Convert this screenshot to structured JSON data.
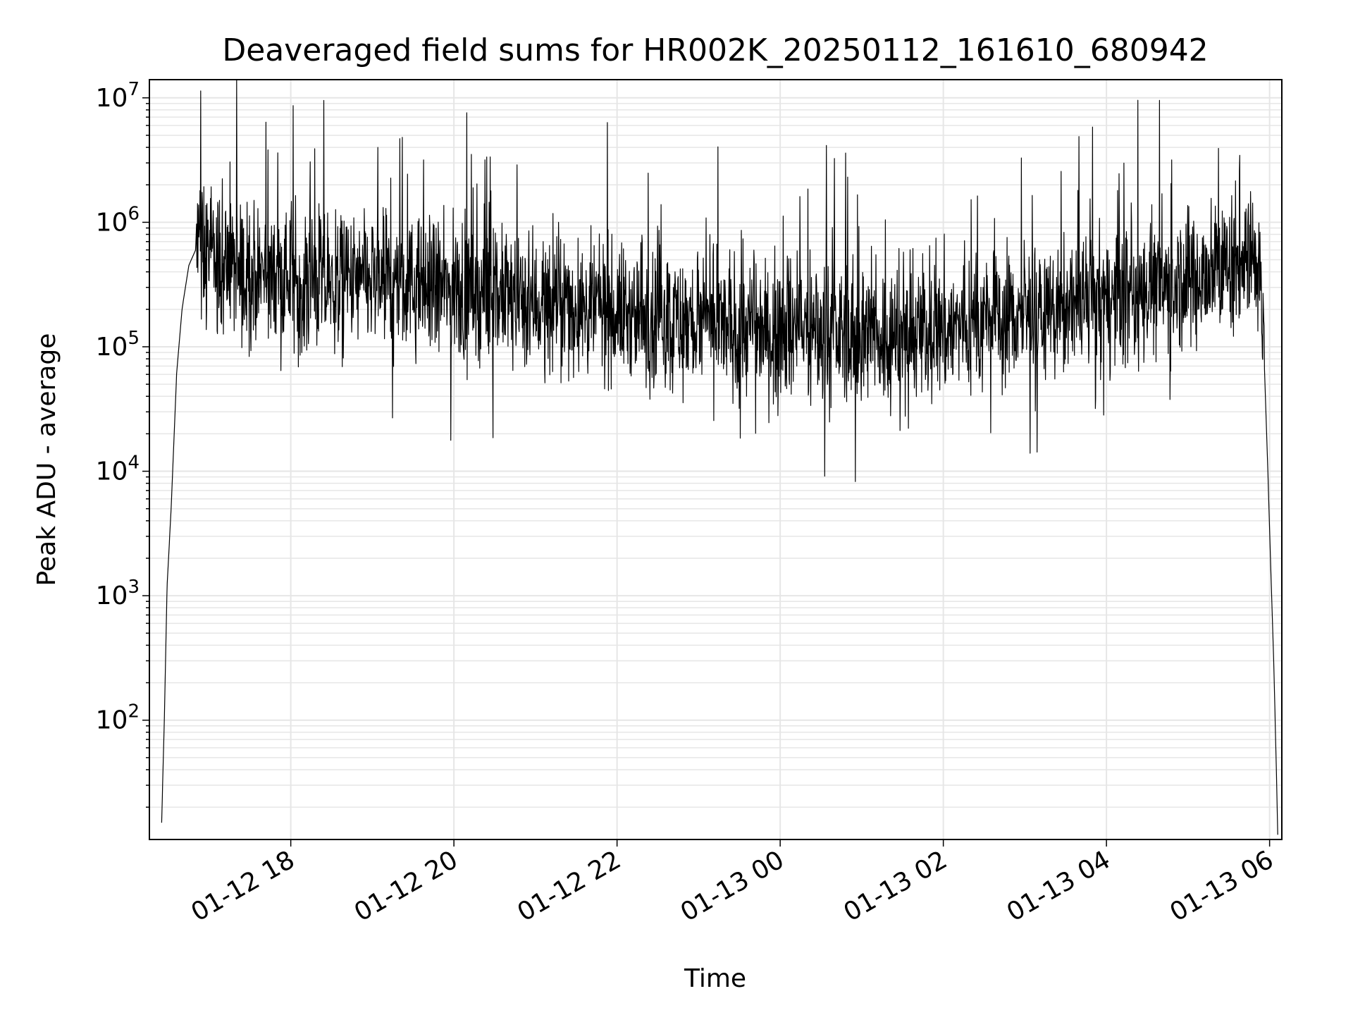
{
  "chart_data": {
    "type": "line",
    "title": "Deaveraged field sums for HR002K_20250112_161610_680942",
    "xlabel": "Time",
    "ylabel": "Peak ADU - average",
    "yscale": "log",
    "ylim": [
      11,
      14000000
    ],
    "xlim": [
      "2025-01-12 16:16",
      "2025-01-13 06:09"
    ],
    "grid": true,
    "series_color": "#000000",
    "grid_color": "#e6e6e6",
    "x_ticks": [
      "01-12 18",
      "01-12 20",
      "01-12 22",
      "01-13 00",
      "01-13 02",
      "01-13 04",
      "01-13 06"
    ],
    "x_tick_times": [
      "2025-01-12 18:00",
      "2025-01-12 20:00",
      "2025-01-12 22:00",
      "2025-01-13 00:00",
      "2025-01-13 02:00",
      "2025-01-13 04:00",
      "2025-01-13 06:00"
    ],
    "y_ticks": [
      {
        "value": 100,
        "base": "10",
        "exp": "2"
      },
      {
        "value": 1000,
        "base": "10",
        "exp": "3"
      },
      {
        "value": 10000,
        "base": "10",
        "exp": "4"
      },
      {
        "value": 100000,
        "base": "10",
        "exp": "5"
      },
      {
        "value": 1000000,
        "base": "10",
        "exp": "6"
      },
      {
        "value": 10000000,
        "base": "10",
        "exp": "7"
      }
    ],
    "series": [
      {
        "x": [
          "2025-01-12 16:25",
          "2025-01-12 16:27",
          "2025-01-12 16:29",
          "2025-01-12 16:32",
          "2025-01-12 16:36",
          "2025-01-12 16:40",
          "2025-01-12 16:45",
          "2025-01-12 16:50",
          "2025-01-12 16:55",
          "2025-01-12 17:05",
          "2025-01-12 17:20",
          "2025-01-12 17:40",
          "2025-01-12 18:00",
          "2025-01-12 18:30",
          "2025-01-12 19:00",
          "2025-01-12 19:30",
          "2025-01-12 20:00",
          "2025-01-12 20:30",
          "2025-01-12 21:00",
          "2025-01-12 21:30",
          "2025-01-12 22:00",
          "2025-01-12 22:30",
          "2025-01-12 23:00",
          "2025-01-12 23:30",
          "2025-01-13 00:00",
          "2025-01-13 00:30",
          "2025-01-13 01:00",
          "2025-01-13 01:30",
          "2025-01-13 02:00",
          "2025-01-13 02:30",
          "2025-01-13 03:00",
          "2025-01-13 03:30",
          "2025-01-13 04:00",
          "2025-01-13 04:30",
          "2025-01-13 05:00",
          "2025-01-13 05:30",
          "2025-01-13 05:50",
          "2025-01-13 05:53",
          "2025-01-13 05:56",
          "2025-01-13 05:59",
          "2025-01-13 06:01",
          "2025-01-13 06:03",
          "2025-01-13 06:05",
          "2025-01-13 06:06"
        ],
        "y": [
          15,
          100,
          1200,
          5000,
          60000,
          200000,
          450000,
          600000,
          650000,
          500000,
          400000,
          380000,
          350000,
          320000,
          330000,
          300000,
          280000,
          260000,
          230000,
          210000,
          190000,
          170000,
          150000,
          140000,
          135000,
          130000,
          120000,
          125000,
          140000,
          160000,
          180000,
          200000,
          230000,
          280000,
          350000,
          450000,
          600000,
          400000,
          80000,
          8000,
          1500,
          300,
          40,
          12
        ]
      }
    ]
  }
}
